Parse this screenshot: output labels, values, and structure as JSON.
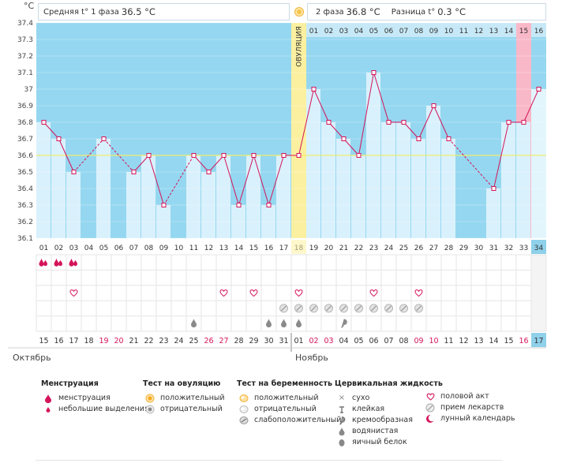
{
  "header": {
    "unit": "°C",
    "phase1_label": "Средняя t° 1 фаза",
    "phase1_value": "36.5 °C",
    "phase2_label": "2 фаза",
    "phase2_value": "36.8 °C",
    "diff_label": "Разница t°",
    "diff_value": "0.3 °C"
  },
  "colors": {
    "sky": "#95d7f0",
    "bar": "#d9f1fc",
    "line": "#d4145a",
    "baseline": "#f0ec6e",
    "ovulation": "#fbf0a0",
    "pink": "#f9b8c8",
    "weekend_date": "#d4145a",
    "grid": "#e6e6e6",
    "today": "#8fd0ea"
  },
  "ovulation_label": "ОВУЛЯЦИЯ",
  "ovulation_day_index": 17,
  "months": [
    "Октябрь",
    "Ноябрь"
  ],
  "chart_data": {
    "type": "line",
    "y_ticks": [
      "36.1",
      "36.2",
      "36.3",
      "36.4",
      "36.5",
      "36.6",
      "36.7",
      "36.8",
      "36.9",
      "37",
      "37.1",
      "37.2",
      "37.3",
      "37.4"
    ],
    "ylim": [
      36.1,
      37.4
    ],
    "baseline": 36.6,
    "cycle_days": [
      "01",
      "02",
      "03",
      "04",
      "05",
      "06",
      "07",
      "08",
      "09",
      "10",
      "11",
      "12",
      "13",
      "14",
      "15",
      "16",
      "17",
      "18",
      "19",
      "20",
      "21",
      "22",
      "23",
      "24",
      "25",
      "26",
      "27",
      "28",
      "29",
      "30",
      "31",
      "32",
      "33",
      "34"
    ],
    "phase2_days": [
      "01",
      "02",
      "03",
      "04",
      "05",
      "06",
      "07",
      "08",
      "09",
      "10",
      "11",
      "12",
      "13",
      "14",
      "15",
      "16"
    ],
    "temperatures": [
      36.8,
      36.7,
      36.5,
      null,
      36.7,
      null,
      36.5,
      36.6,
      36.3,
      null,
      36.6,
      36.5,
      36.6,
      36.3,
      36.6,
      36.3,
      36.6,
      36.6,
      37.0,
      36.8,
      36.7,
      36.6,
      37.1,
      36.8,
      36.8,
      36.7,
      36.9,
      36.7,
      null,
      null,
      36.4,
      36.8,
      36.8,
      37.0
    ],
    "calendar_dates": [
      "15",
      "16",
      "17",
      "18",
      "19",
      "20",
      "21",
      "22",
      "23",
      "24",
      "25",
      "26",
      "27",
      "28",
      "29",
      "30",
      "31",
      "01",
      "02",
      "03",
      "04",
      "05",
      "06",
      "07",
      "08",
      "09",
      "10",
      "11",
      "12",
      "13",
      "14",
      "15",
      "16",
      "17"
    ],
    "weekend_dates": [
      4,
      5,
      11,
      12,
      18,
      19,
      25,
      26,
      32
    ],
    "pink_day_index": 32,
    "today_index": 33
  },
  "markers": {
    "menstruation": [
      0,
      1,
      2
    ],
    "intercourse": [
      2,
      12,
      14,
      17,
      22,
      25
    ],
    "medication": [
      16,
      17,
      18,
      19,
      20,
      21,
      22,
      23,
      24,
      25
    ],
    "watery": [
      10,
      15,
      16,
      17
    ],
    "creamy": [
      20
    ]
  },
  "legend": {
    "menstruation": {
      "title": "Менструация",
      "items": [
        {
          "icon": "menstruation",
          "label": "менструация"
        },
        {
          "icon": "spotting",
          "label": "небольшие выделения"
        }
      ]
    },
    "ovulation_test": {
      "title": "Тест на овуляцию",
      "items": [
        {
          "icon": "positive-test",
          "label": "положительный"
        },
        {
          "icon": "negative-test",
          "label": "отрицательный"
        }
      ]
    },
    "pregnancy_test": {
      "title": "Тест на беременность",
      "items": [
        {
          "icon": "positive-preg",
          "label": "положительный"
        },
        {
          "icon": "negative-preg",
          "label": "отрицательный"
        },
        {
          "icon": "weak-preg",
          "label": "слабоположительный"
        }
      ]
    },
    "cervical": {
      "title": "Цервикальная жидкость",
      "items": [
        {
          "icon": "dry",
          "label": "сухо"
        },
        {
          "icon": "sticky",
          "label": "клейкая"
        },
        {
          "icon": "creamy",
          "label": "кремообразная"
        },
        {
          "icon": "watery",
          "label": "водянистая"
        },
        {
          "icon": "eggwhite",
          "label": "яичный белок"
        }
      ]
    },
    "other": {
      "items": [
        {
          "icon": "heart",
          "label": "половой акт"
        },
        {
          "icon": "pill",
          "label": "прием лекарств"
        },
        {
          "icon": "moon",
          "label": "лунный календарь"
        }
      ]
    }
  }
}
